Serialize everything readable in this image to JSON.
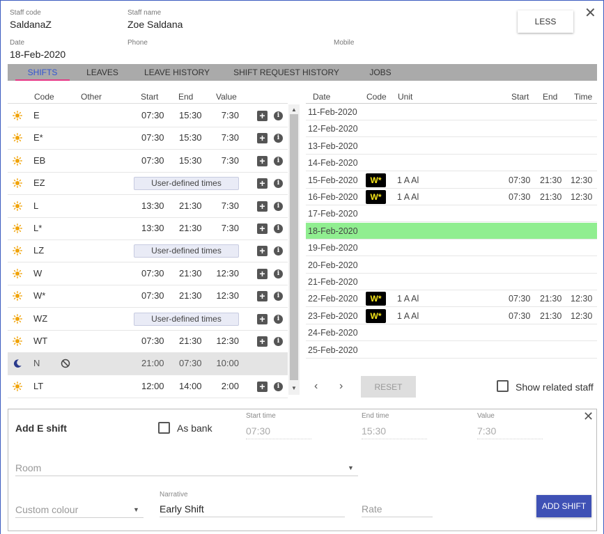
{
  "header": {
    "staff_code_label": "Staff code",
    "staff_code": "SaldanaZ",
    "staff_name_label": "Staff name",
    "staff_name": "Zoe Saldana",
    "date_label": "Date",
    "date": "18-Feb-2020",
    "phone_label": "Phone",
    "phone": "",
    "mobile_label": "Mobile",
    "mobile": "",
    "less_button": "LESS"
  },
  "tabs": [
    "SHIFTS",
    "LEAVES",
    "LEAVE HISTORY",
    "SHIFT REQUEST HISTORY",
    "JOBS"
  ],
  "active_tab": "SHIFTS",
  "shift_list": {
    "columns": {
      "code": "Code",
      "other": "Other",
      "start": "Start",
      "end": "End",
      "value": "Value"
    },
    "user_defined_label": "User-defined times",
    "rows": [
      {
        "icon": "sun-icon",
        "code": "E",
        "start": "07:30",
        "end": "15:30",
        "value": "7:30",
        "actions": true
      },
      {
        "icon": "sun-icon",
        "code": "E*",
        "start": "07:30",
        "end": "15:30",
        "value": "7:30",
        "actions": true
      },
      {
        "icon": "sun-icon",
        "code": "EB",
        "start": "07:30",
        "end": "15:30",
        "value": "7:30",
        "actions": true
      },
      {
        "icon": "sun-icon",
        "code": "EZ",
        "user_defined": true,
        "actions": true
      },
      {
        "icon": "sun-icon",
        "code": "L",
        "start": "13:30",
        "end": "21:30",
        "value": "7:30",
        "actions": true
      },
      {
        "icon": "sun-icon",
        "code": "L*",
        "start": "13:30",
        "end": "21:30",
        "value": "7:30",
        "actions": true
      },
      {
        "icon": "sun-icon",
        "code": "LZ",
        "user_defined": true,
        "actions": true
      },
      {
        "icon": "sun-icon",
        "code": "W",
        "start": "07:30",
        "end": "21:30",
        "value": "12:30",
        "actions": true
      },
      {
        "icon": "sun-icon",
        "code": "W*",
        "start": "07:30",
        "end": "21:30",
        "value": "12:30",
        "actions": true
      },
      {
        "icon": "sun-icon",
        "code": "WZ",
        "user_defined": true,
        "actions": true
      },
      {
        "icon": "sun-icon",
        "code": "WT",
        "start": "07:30",
        "end": "21:30",
        "value": "12:30",
        "actions": true
      },
      {
        "icon": "moon-icon",
        "code": "N",
        "start": "21:00",
        "end": "07:30",
        "value": "10:00",
        "actions": false,
        "disabled": true
      },
      {
        "icon": "sun-icon",
        "code": "LT",
        "start": "12:00",
        "end": "14:00",
        "value": "2:00",
        "actions": true
      }
    ]
  },
  "calendar": {
    "columns": {
      "date": "Date",
      "code": "Code",
      "unit": "Unit",
      "start": "Start",
      "end": "End",
      "time": "Time"
    },
    "rows": [
      {
        "date": "11-Feb-2020"
      },
      {
        "date": "12-Feb-2020"
      },
      {
        "date": "13-Feb-2020"
      },
      {
        "date": "14-Feb-2020"
      },
      {
        "date": "15-Feb-2020",
        "code": "W*",
        "unit": "1 A Al",
        "start": "07:30",
        "end": "21:30",
        "time": "12:30"
      },
      {
        "date": "16-Feb-2020",
        "code": "W*",
        "unit": "1 A Al",
        "start": "07:30",
        "end": "21:30",
        "time": "12:30"
      },
      {
        "date": "17-Feb-2020"
      },
      {
        "date": "18-Feb-2020",
        "today": true
      },
      {
        "date": "19-Feb-2020"
      },
      {
        "date": "20-Feb-2020"
      },
      {
        "date": "21-Feb-2020"
      },
      {
        "date": "22-Feb-2020",
        "code": "W*",
        "unit": "1 A Al",
        "start": "07:30",
        "end": "21:30",
        "time": "12:30"
      },
      {
        "date": "23-Feb-2020",
        "code": "W*",
        "unit": "1 A Al",
        "start": "07:30",
        "end": "21:30",
        "time": "12:30"
      },
      {
        "date": "24-Feb-2020"
      },
      {
        "date": "25-Feb-2020"
      }
    ],
    "today_color": "#90ee90",
    "badge_color": "#f5e51a",
    "prev_icon": "chevron-left-icon",
    "next_icon": "chevron-right-icon",
    "reset_button": "RESET",
    "show_related_label": "Show related staff"
  },
  "add_shift": {
    "title": "Add E shift",
    "as_bank_label": "As bank",
    "start_time_label": "Start time",
    "start_time": "07:30",
    "end_time_label": "End time",
    "end_time": "15:30",
    "value_label": "Value",
    "value": "7:30",
    "room_placeholder": "Room",
    "custom_colour_placeholder": "Custom colour",
    "narrative_label": "Narrative",
    "narrative": "Early Shift",
    "rate_placeholder": "Rate",
    "add_button": "ADD SHIFT",
    "button_color": "#3f51b5"
  }
}
